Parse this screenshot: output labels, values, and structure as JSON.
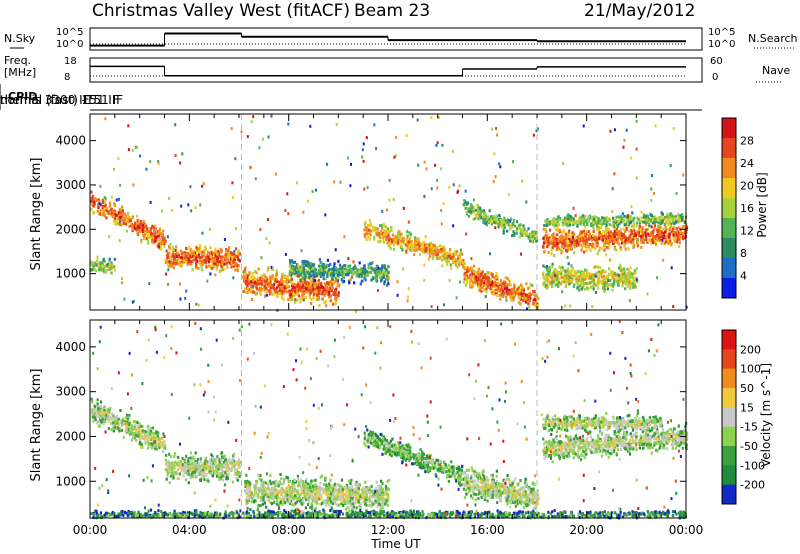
{
  "header": {
    "title": "Christmas Valley West (fitACF)",
    "beam": "Beam 23",
    "date": "21/May/2012"
  },
  "params": {
    "nsky_label": "N.Sky",
    "nsearch_label": "N.Search",
    "freq_label_1": "Freq.",
    "freq_label_2": "[MHz]",
    "nave_label": "Nave",
    "cpid_label": "CPID",
    "nsky_ticks": [
      "10^5",
      "10^0"
    ],
    "nsearch_ticks": [
      "10^5",
      "10^0"
    ],
    "freq_ticks": [
      "18",
      "8"
    ],
    "nave_ticks": [
      "60",
      "0"
    ],
    "cpid_segments": [
      {
        "text": "normal (fast) -151 IF",
        "start_hour": 0,
        "end_hour": 6.1
      },
      {
        "text": "themis 3300 IF",
        "start_hour": 6.1,
        "end_hour": 18.0
      },
      {
        "text": "normal (fast) 151 IF",
        "start_hour": 18.0,
        "end_hour": 24
      }
    ],
    "freq_steps": [
      {
        "start": 0,
        "end": 3.0,
        "value": 14.5
      },
      {
        "start": 3.0,
        "end": 15.0,
        "value": 10.6
      },
      {
        "start": 15.0,
        "end": 18.0,
        "value": 13.4
      },
      {
        "start": 18.0,
        "end": 24,
        "value": 14.3
      }
    ],
    "nave_steps": [
      {
        "start": 0,
        "end": 24,
        "value": 15
      }
    ],
    "nsky_steps": [
      {
        "start": 0,
        "end": 3.0,
        "value": 0.2
      },
      {
        "start": 3.0,
        "end": 6.1,
        "value": 0.75
      },
      {
        "start": 6.1,
        "end": 12.0,
        "value": 0.6
      },
      {
        "start": 12.0,
        "end": 18.0,
        "value": 0.45
      },
      {
        "start": 18.0,
        "end": 24,
        "value": 0.4
      }
    ]
  },
  "chart_data": [
    {
      "type": "heatmap",
      "panel": "power",
      "xlabel": "Time UT",
      "ylabel": "Slant Range [km]",
      "xlim_hours": [
        0,
        24
      ],
      "ylim": [
        180,
        4600
      ],
      "yticks": [
        1000,
        2000,
        3000,
        4000
      ],
      "colorbar_label": "Power [dB]",
      "colorbar_ticks": [
        "28",
        "24",
        "20",
        "16",
        "12",
        "8",
        "4"
      ],
      "colors": [
        "#0a1ee6",
        "#1e6ec8",
        "#2e8a62",
        "#52b452",
        "#a8d23c",
        "#f0c820",
        "#f08a1e",
        "#e6461e",
        "#d21414"
      ],
      "bands": [
        {
          "start": 0.0,
          "end": 3.0,
          "r0": 2650,
          "r1": 1700,
          "w": 250,
          "level": 7
        },
        {
          "start": 0.0,
          "end": 1.0,
          "r0": 1150,
          "r1": 1150,
          "w": 200,
          "level": 4
        },
        {
          "start": 3.0,
          "end": 6.0,
          "r0": 1400,
          "r1": 1300,
          "w": 300,
          "level": 7
        },
        {
          "start": 6.1,
          "end": 10.0,
          "r0": 800,
          "r1": 600,
          "w": 350,
          "level": 7
        },
        {
          "start": 8.0,
          "end": 12.0,
          "r0": 1100,
          "r1": 1000,
          "w": 250,
          "level": 3
        },
        {
          "start": 11.0,
          "end": 15.0,
          "r0": 2000,
          "r1": 1300,
          "w": 250,
          "level": 6
        },
        {
          "start": 15.0,
          "end": 18.0,
          "r0": 1000,
          "r1": 400,
          "w": 300,
          "level": 7
        },
        {
          "start": 15.0,
          "end": 18.0,
          "r0": 2500,
          "r1": 1800,
          "w": 200,
          "level": 4
        },
        {
          "start": 18.2,
          "end": 24.0,
          "r0": 1700,
          "r1": 1900,
          "w": 300,
          "level": 7
        },
        {
          "start": 18.2,
          "end": 24.0,
          "r0": 2150,
          "r1": 2250,
          "w": 150,
          "level": 4
        },
        {
          "start": 18.2,
          "end": 22.0,
          "r0": 900,
          "r1": 900,
          "w": 300,
          "level": 5
        }
      ]
    },
    {
      "type": "heatmap",
      "panel": "velocity",
      "xlabel": "Time UT",
      "ylabel": "Slant Range [km]",
      "xlim_hours": [
        0,
        24
      ],
      "ylim": [
        180,
        4600
      ],
      "yticks": [
        1000,
        2000,
        3000,
        4000
      ],
      "xticks": [
        "00:00",
        "04:00",
        "08:00",
        "12:00",
        "16:00",
        "20:00",
        "00:00"
      ],
      "colorbar_label": "Velocity [m s^-1]",
      "colorbar_ticks": [
        "200",
        "100",
        "50",
        "15",
        "-15",
        "-50",
        "-100",
        "-200"
      ],
      "colors": [
        "#1428c8",
        "#1e8c3c",
        "#3ca03c",
        "#8cd250",
        "#c8c8c8",
        "#f0c83c",
        "#f08c1e",
        "#e6461e",
        "#dc1414"
      ],
      "bands": [
        {
          "start": 0.0,
          "end": 3.0,
          "r0": 2600,
          "r1": 1800,
          "w": 300,
          "level": 4
        },
        {
          "start": 3.0,
          "end": 6.0,
          "r0": 1300,
          "r1": 1300,
          "w": 350,
          "level": 4
        },
        {
          "start": 6.2,
          "end": 12.0,
          "r0": 800,
          "r1": 650,
          "w": 400,
          "level": 4
        },
        {
          "start": 11.0,
          "end": 15.0,
          "r0": 2000,
          "r1": 1100,
          "w": 250,
          "level": 3
        },
        {
          "start": 15.0,
          "end": 18.0,
          "r0": 1000,
          "r1": 600,
          "w": 400,
          "level": 4
        },
        {
          "start": 18.2,
          "end": 24.0,
          "r0": 1700,
          "r1": 2000,
          "w": 300,
          "level": 4
        },
        {
          "start": 18.2,
          "end": 23.0,
          "r0": 2300,
          "r1": 2300,
          "w": 200,
          "level": 4
        },
        {
          "start": 0.0,
          "end": 24.0,
          "r0": 250,
          "r1": 250,
          "w": 100,
          "level": 2
        }
      ]
    }
  ]
}
